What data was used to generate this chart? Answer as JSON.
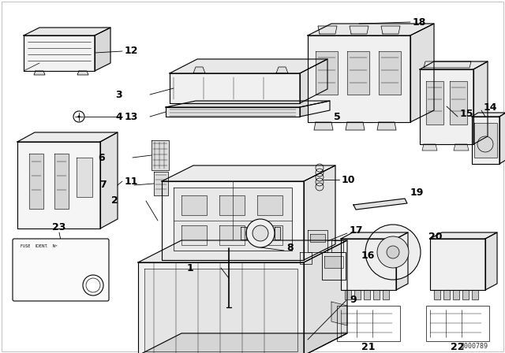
{
  "bg_color": "#ffffff",
  "line_color": "#000000",
  "diagram_id": "0000789",
  "figsize": [
    6.4,
    4.48
  ],
  "dpi": 100,
  "border_color": "#aaaaaa"
}
